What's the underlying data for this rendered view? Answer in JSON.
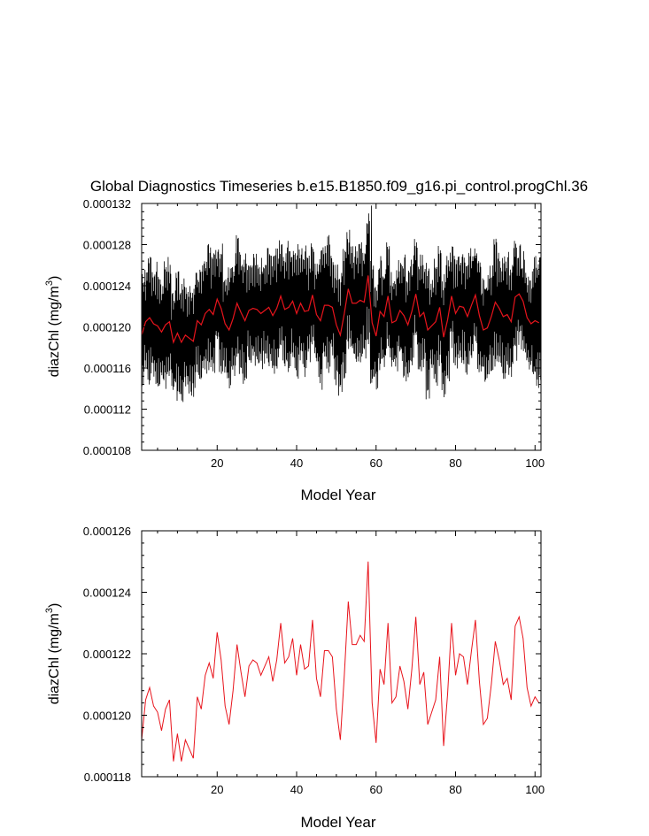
{
  "title": "Global Diagnostics Timeseries b.e15.B1850.f09_g16.pi_control.progChl.36",
  "colors": {
    "monthly": "#000000",
    "annual": "#e8141c",
    "frame": "#000000",
    "background": "#ffffff"
  },
  "chart_data": [
    {
      "type": "line",
      "panel": "top",
      "xlabel": "Model Year",
      "ylabel_main": "diazChl (mg/m",
      "ylabel_sup": "3",
      "ylabel_close": ")",
      "xlim": [
        1,
        101.5
      ],
      "ylim": [
        0.000108,
        0.000132
      ],
      "xticks": [
        20,
        40,
        60,
        80,
        100
      ],
      "xtick_labels": [
        "20",
        "40",
        "60",
        "80",
        "100"
      ],
      "yticks": [
        0.000108,
        0.000112,
        0.000116,
        0.00012,
        0.000124,
        0.000128,
        0.000132
      ],
      "ytick_labels": [
        "0.000108",
        "0.000112",
        "0.000116",
        "0.000120",
        "0.000124",
        "0.000128",
        "0.000132"
      ],
      "grid": false,
      "monthly_series": {
        "description": "monthly values oscillate around the annual mean with seasonal amplitude of roughly 0.000004-0.000007; range 0.000110-0.000132",
        "min": 0.0001102,
        "max": 0.0001318,
        "max_year": 59
      }
    },
    {
      "type": "line",
      "panel": "bottom",
      "xlabel": "Model Year",
      "ylabel_main": "diazChl (mg/m",
      "ylabel_sup": "3",
      "ylabel_close": ")",
      "xlim": [
        1,
        101.5
      ],
      "ylim": [
        0.000118,
        0.000126
      ],
      "xticks": [
        20,
        40,
        60,
        80,
        100
      ],
      "xtick_labels": [
        "20",
        "40",
        "60",
        "80",
        "100"
      ],
      "yticks": [
        0.000118,
        0.00012,
        0.000122,
        0.000124,
        0.000126
      ],
      "ytick_labels": [
        "0.000118",
        "0.000120",
        "0.000122",
        "0.000124",
        "0.000126"
      ],
      "grid": false,
      "annual_series": {
        "x": [
          1,
          2,
          3,
          4,
          5,
          6,
          7,
          8,
          9,
          10,
          11,
          12,
          13,
          14,
          15,
          16,
          17,
          18,
          19,
          20,
          21,
          22,
          23,
          24,
          25,
          26,
          27,
          28,
          29,
          30,
          31,
          32,
          33,
          34,
          35,
          36,
          37,
          38,
          39,
          40,
          41,
          42,
          43,
          44,
          45,
          46,
          47,
          48,
          49,
          50,
          51,
          52,
          53,
          54,
          55,
          56,
          57,
          58,
          59,
          60,
          61,
          62,
          63,
          64,
          65,
          66,
          67,
          68,
          69,
          70,
          71,
          72,
          73,
          74,
          75,
          76,
          77,
          78,
          79,
          80,
          81,
          82,
          83,
          84,
          85,
          86,
          87,
          88,
          89,
          90,
          91,
          92,
          93,
          94,
          95,
          96,
          97,
          98,
          99,
          100,
          101
        ],
        "y": [
          0.0001192,
          0.0001205,
          0.0001209,
          0.0001203,
          0.0001201,
          0.0001195,
          0.0001202,
          0.0001205,
          0.0001185,
          0.0001194,
          0.0001185,
          0.0001192,
          0.0001189,
          0.0001186,
          0.0001206,
          0.0001202,
          0.0001213,
          0.0001217,
          0.0001212,
          0.0001227,
          0.0001218,
          0.0001203,
          0.0001197,
          0.0001208,
          0.0001223,
          0.0001214,
          0.0001206,
          0.0001216,
          0.0001218,
          0.0001217,
          0.0001213,
          0.0001216,
          0.0001219,
          0.0001211,
          0.0001218,
          0.000123,
          0.0001217,
          0.0001219,
          0.0001225,
          0.0001213,
          0.0001223,
          0.0001215,
          0.0001216,
          0.0001231,
          0.0001212,
          0.0001206,
          0.0001221,
          0.0001221,
          0.0001219,
          0.0001202,
          0.0001192,
          0.0001213,
          0.0001237,
          0.0001223,
          0.0001223,
          0.0001226,
          0.0001224,
          0.000125,
          0.0001204,
          0.0001191,
          0.0001215,
          0.000121,
          0.000123,
          0.0001204,
          0.0001206,
          0.0001216,
          0.0001211,
          0.0001202,
          0.0001215,
          0.0001232,
          0.000121,
          0.0001214,
          0.0001197,
          0.0001201,
          0.0001205,
          0.0001219,
          0.000119,
          0.0001207,
          0.000123,
          0.0001213,
          0.000122,
          0.0001219,
          0.000121,
          0.0001221,
          0.0001231,
          0.0001211,
          0.0001197,
          0.0001199,
          0.000121,
          0.0001224,
          0.0001218,
          0.000121,
          0.0001212,
          0.0001205,
          0.0001229,
          0.0001232,
          0.0001225,
          0.0001209,
          0.0001203,
          0.0001206,
          0.0001204
        ]
      }
    }
  ]
}
